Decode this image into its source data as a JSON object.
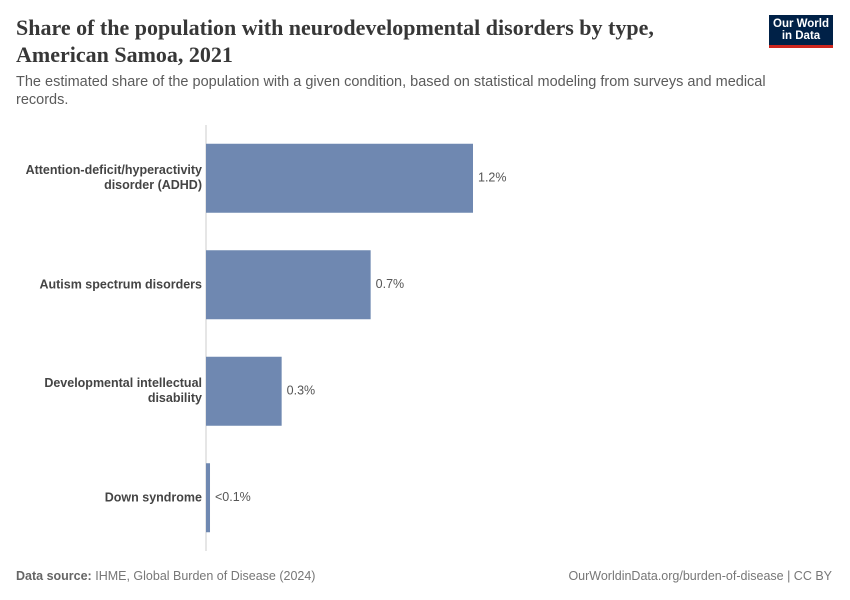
{
  "chart_data": {
    "type": "bar",
    "orientation": "horizontal",
    "title": "Share of the population with neurodevelopmental disorders by type, American Samoa, 2021",
    "subtitle": "The estimated share of the population with a given condition, based on statistical modeling from surveys and medical records.",
    "logo": "Our World in Data",
    "categories": [
      "Attention-deficit/hyperactivity disorder (ADHD)",
      "Autism spectrum disorders",
      "Developmental intellectual disability",
      "Down syndrome"
    ],
    "values": [
      1.2,
      0.74,
      0.34,
      0.018
    ],
    "value_labels": [
      "1.2%",
      "0.7%",
      "0.3%",
      "<0.1%"
    ],
    "color": "#6f88b1",
    "xlim": [
      0,
      1.2
    ],
    "source_label": "Data source:",
    "source": "IHME, Global Burden of Disease (2024)",
    "url": "OurWorldinData.org/burden-of-disease | CC BY"
  }
}
